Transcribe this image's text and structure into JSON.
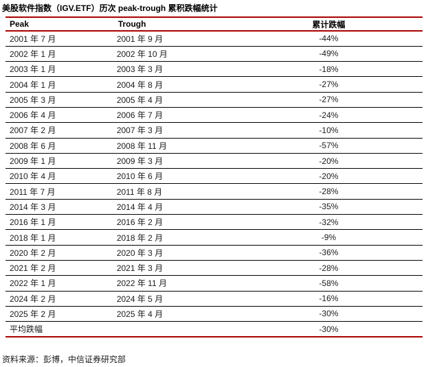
{
  "title": "美股软件指数（IGV.ETF）历次 peak-trough 累积跌幅统计",
  "table": {
    "headers": [
      "Peak",
      "Trough",
      "累计跌幅"
    ],
    "rows": [
      {
        "peak": "2001 年 7 月",
        "trough": "2001 年 9 月",
        "drawdown": "-44%"
      },
      {
        "peak": "2002 年 1 月",
        "trough": "2002 年 10 月",
        "drawdown": "-49%"
      },
      {
        "peak": "2003 年 1 月",
        "trough": "2003 年 3 月",
        "drawdown": "-18%"
      },
      {
        "peak": "2004 年 1 月",
        "trough": "2004 年 8 月",
        "drawdown": "-27%"
      },
      {
        "peak": "2005 年 3 月",
        "trough": "2005 年 4 月",
        "drawdown": "-27%"
      },
      {
        "peak": "2006 年 4 月",
        "trough": "2006 年 7 月",
        "drawdown": "-24%"
      },
      {
        "peak": "2007 年 2 月",
        "trough": "2007 年 3 月",
        "drawdown": "-10%"
      },
      {
        "peak": "2008 年 6 月",
        "trough": "2008 年 11 月",
        "drawdown": "-57%"
      },
      {
        "peak": "2009 年 1 月",
        "trough": "2009 年 3 月",
        "drawdown": "-20%"
      },
      {
        "peak": "2010 年 4 月",
        "trough": "2010 年 6 月",
        "drawdown": "-20%"
      },
      {
        "peak": "2011 年 7 月",
        "trough": "2011 年 8 月",
        "drawdown": "-28%"
      },
      {
        "peak": "2014 年 3 月",
        "trough": "2014 年 4 月",
        "drawdown": "-35%"
      },
      {
        "peak": "2016 年 1 月",
        "trough": "2016 年 2 月",
        "drawdown": "-32%"
      },
      {
        "peak": "2018 年 1 月",
        "trough": "2018 年 2 月",
        "drawdown": "-9%"
      },
      {
        "peak": "2020 年 2 月",
        "trough": "2020 年 3 月",
        "drawdown": "-36%"
      },
      {
        "peak": "2021 年 2 月",
        "trough": "2021 年 3 月",
        "drawdown": "-28%"
      },
      {
        "peak": "2022 年 1 月",
        "trough": "2022 年 11 月",
        "drawdown": "-58%"
      },
      {
        "peak": "2024 年 2 月",
        "trough": "2024 年 5 月",
        "drawdown": "-16%"
      },
      {
        "peak": "2025 年 2 月",
        "trough": "2025 年 4 月",
        "drawdown": "-30%"
      }
    ],
    "summary": {
      "label": "平均跌幅",
      "trough": "",
      "drawdown": "-30%"
    }
  },
  "source": "资料来源：彭博，中信证券研究部",
  "colors": {
    "accent_red": "#AA0000",
    "row_line": "#000000",
    "text": "#1A1A1A"
  }
}
